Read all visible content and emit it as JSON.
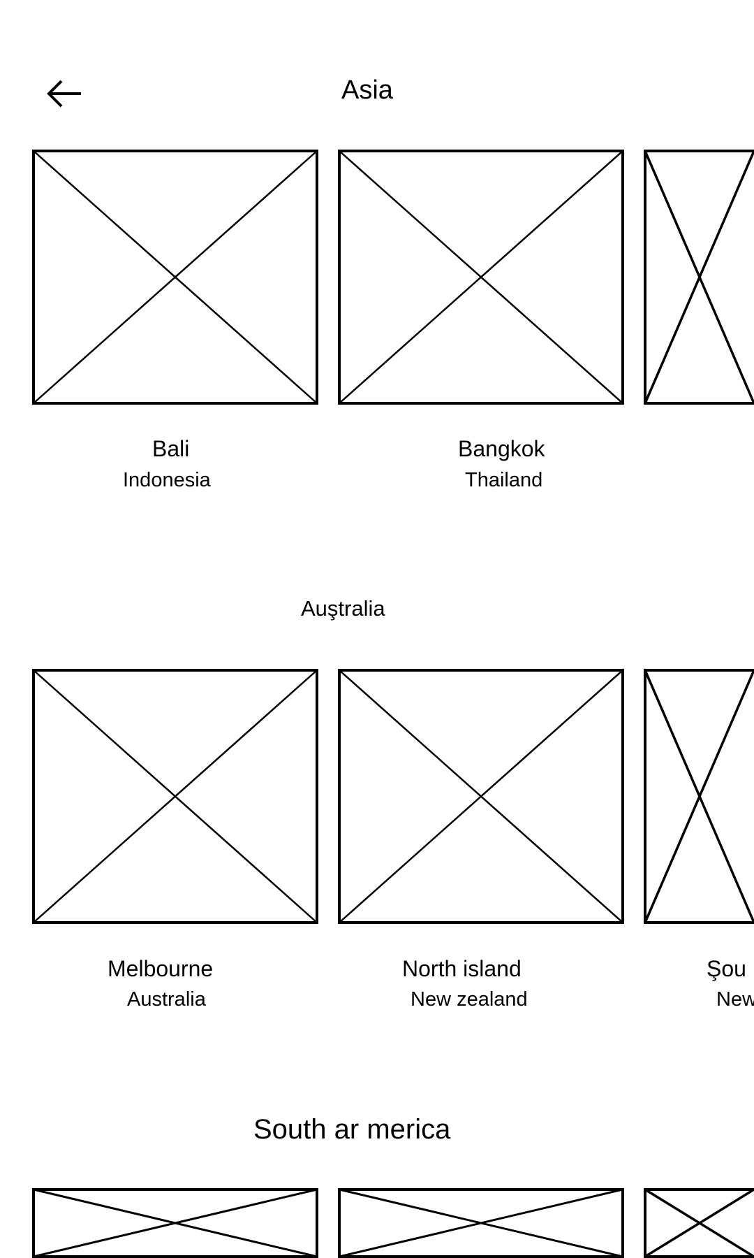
{
  "header": {
    "back_icon": "arrow-left-icon"
  },
  "sections": [
    {
      "title": "Asia",
      "cards": [
        {
          "title": "Bali",
          "subtitle": "Indonesia"
        },
        {
          "title": "Bangkok",
          "subtitle": "Thailand"
        },
        {
          "title": "",
          "subtitle": ""
        }
      ]
    },
    {
      "title": "Auştralia",
      "cards": [
        {
          "title": "Melbourne",
          "subtitle": "Australia"
        },
        {
          "title": "North island",
          "subtitle": "New zealand"
        },
        {
          "title": "Şou",
          "subtitle": "New"
        }
      ]
    },
    {
      "title": "South ar merica",
      "cards": [
        {
          "title": "",
          "subtitle": ""
        },
        {
          "title": "",
          "subtitle": ""
        },
        {
          "title": "",
          "subtitle": ""
        }
      ]
    }
  ]
}
